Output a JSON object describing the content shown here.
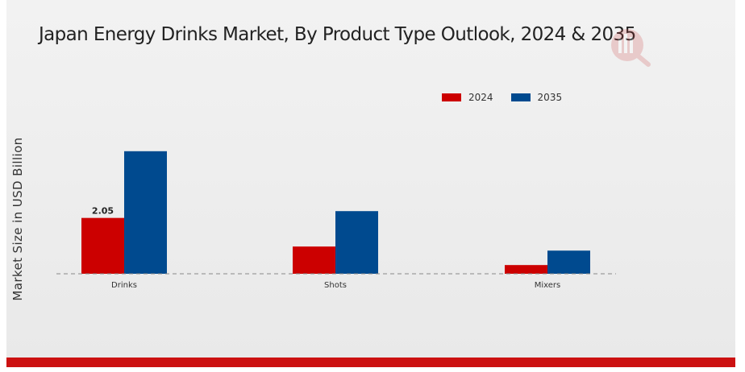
{
  "chart_data": {
    "type": "bar",
    "title": "Japan Energy Drinks Market, By Product Type Outlook, 2024 & 2035",
    "ylabel": "Market Size in USD Billion",
    "xlabel": "",
    "categories": [
      "Drinks",
      "Shots",
      "Mixers"
    ],
    "series": [
      {
        "name": "2024",
        "color": "#cc0000",
        "values": [
          2.05,
          1.0,
          0.32
        ]
      },
      {
        "name": "2035",
        "color": "#004a8f",
        "values": [
          4.5,
          2.3,
          0.85
        ]
      }
    ],
    "data_labels": [
      {
        "series": 0,
        "category": 0,
        "text": "2.05"
      }
    ],
    "ylim": [
      0,
      6.8
    ],
    "grid": false,
    "legend_position": "top-right",
    "baseline": "dashed"
  }
}
